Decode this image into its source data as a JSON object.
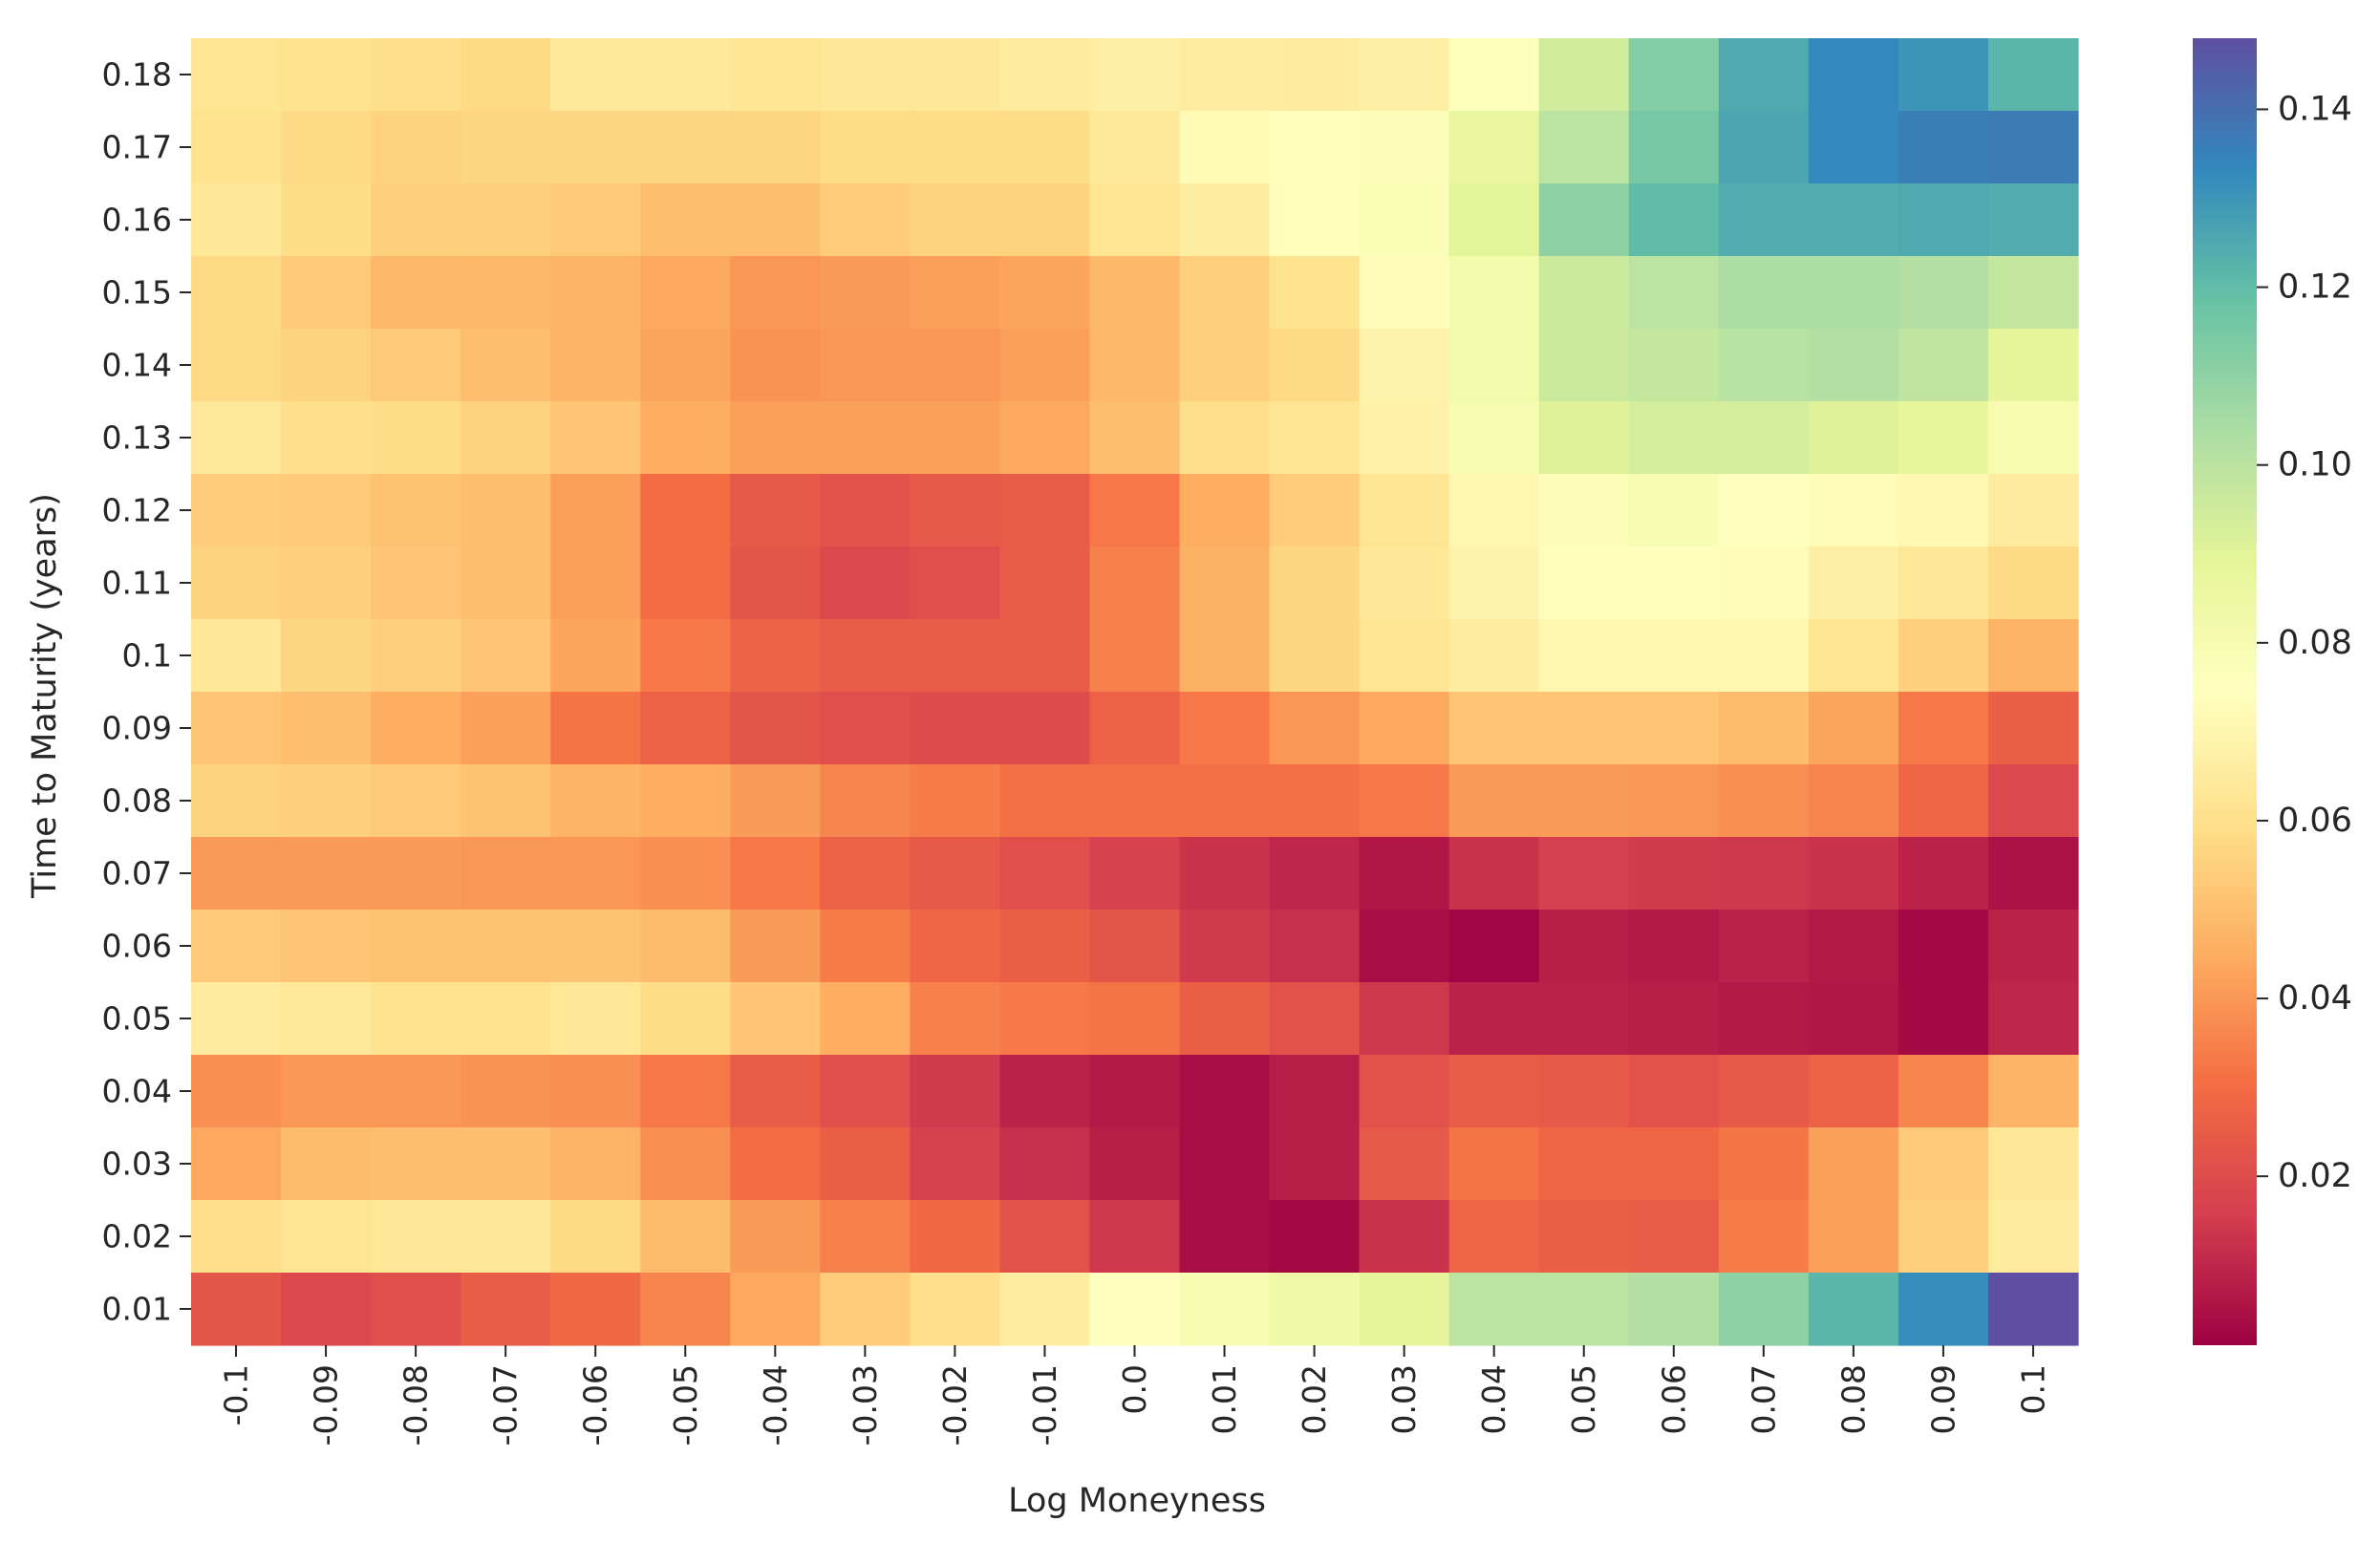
{
  "chart_data": {
    "type": "heatmap",
    "title": "",
    "xlabel": "Log Moneyness",
    "ylabel": "Time to Maturity (years)",
    "x_categories": [
      "-0.1",
      "-0.09",
      "-0.08",
      "-0.07",
      "-0.06",
      "-0.05",
      "-0.04",
      "-0.03",
      "-0.02",
      "-0.01",
      "0.0",
      "0.01",
      "0.02",
      "0.03",
      "0.04",
      "0.05",
      "0.06",
      "0.07",
      "0.08",
      "0.09",
      "0.1"
    ],
    "y_categories": [
      "0.18",
      "0.17",
      "0.16",
      "0.15",
      "0.14",
      "0.13",
      "0.12",
      "0.11",
      "0.1",
      "0.09",
      "0.08",
      "0.07",
      "0.06",
      "0.05",
      "0.04",
      "0.03",
      "0.02",
      "0.01"
    ],
    "values": [
      [
        0.062,
        0.061,
        0.06,
        0.058,
        0.064,
        0.064,
        0.062,
        0.063,
        0.063,
        0.065,
        0.067,
        0.066,
        0.065,
        0.067,
        0.076,
        0.095,
        0.112,
        0.125,
        0.133,
        0.13,
        0.122
      ],
      [
        0.061,
        0.058,
        0.056,
        0.057,
        0.057,
        0.057,
        0.057,
        0.059,
        0.059,
        0.059,
        0.064,
        0.072,
        0.074,
        0.077,
        0.087,
        0.1,
        0.115,
        0.126,
        0.133,
        0.136,
        0.137
      ],
      [
        0.063,
        0.059,
        0.055,
        0.055,
        0.053,
        0.05,
        0.05,
        0.054,
        0.056,
        0.056,
        0.062,
        0.066,
        0.074,
        0.078,
        0.09,
        0.11,
        0.12,
        0.124,
        0.124,
        0.125,
        0.124
      ],
      [
        0.058,
        0.053,
        0.048,
        0.048,
        0.047,
        0.044,
        0.04,
        0.041,
        0.042,
        0.043,
        0.048,
        0.055,
        0.061,
        0.073,
        0.082,
        0.096,
        0.1,
        0.104,
        0.104,
        0.102,
        0.098
      ],
      [
        0.058,
        0.056,
        0.053,
        0.05,
        0.047,
        0.043,
        0.039,
        0.04,
        0.04,
        0.042,
        0.048,
        0.055,
        0.058,
        0.069,
        0.082,
        0.096,
        0.098,
        0.101,
        0.102,
        0.099,
        0.089
      ],
      [
        0.064,
        0.06,
        0.059,
        0.056,
        0.052,
        0.045,
        0.042,
        0.042,
        0.042,
        0.044,
        0.05,
        0.06,
        0.062,
        0.068,
        0.079,
        0.091,
        0.094,
        0.094,
        0.091,
        0.088,
        0.08
      ],
      [
        0.054,
        0.053,
        0.051,
        0.05,
        0.042,
        0.03,
        0.024,
        0.022,
        0.024,
        0.025,
        0.033,
        0.045,
        0.054,
        0.062,
        0.07,
        0.077,
        0.079,
        0.075,
        0.073,
        0.071,
        0.065
      ],
      [
        0.056,
        0.055,
        0.052,
        0.05,
        0.042,
        0.03,
        0.023,
        0.019,
        0.021,
        0.025,
        0.035,
        0.046,
        0.057,
        0.063,
        0.069,
        0.074,
        0.074,
        0.073,
        0.067,
        0.063,
        0.058
      ],
      [
        0.063,
        0.057,
        0.055,
        0.052,
        0.043,
        0.033,
        0.027,
        0.025,
        0.025,
        0.025,
        0.035,
        0.046,
        0.057,
        0.062,
        0.066,
        0.07,
        0.07,
        0.07,
        0.062,
        0.055,
        0.047
      ],
      [
        0.052,
        0.05,
        0.045,
        0.042,
        0.032,
        0.027,
        0.023,
        0.021,
        0.02,
        0.02,
        0.027,
        0.033,
        0.04,
        0.044,
        0.052,
        0.052,
        0.052,
        0.049,
        0.043,
        0.033,
        0.026
      ],
      [
        0.056,
        0.055,
        0.053,
        0.051,
        0.047,
        0.045,
        0.041,
        0.036,
        0.034,
        0.031,
        0.031,
        0.031,
        0.031,
        0.033,
        0.041,
        0.041,
        0.04,
        0.038,
        0.036,
        0.028,
        0.019
      ],
      [
        0.041,
        0.041,
        0.041,
        0.04,
        0.04,
        0.038,
        0.033,
        0.027,
        0.024,
        0.021,
        0.017,
        0.013,
        0.01,
        0.006,
        0.013,
        0.016,
        0.015,
        0.014,
        0.013,
        0.009,
        0.005
      ],
      [
        0.053,
        0.052,
        0.051,
        0.051,
        0.051,
        0.049,
        0.041,
        0.034,
        0.028,
        0.026,
        0.023,
        0.015,
        0.012,
        0.004,
        0.002,
        0.008,
        0.007,
        0.009,
        0.007,
        0.003,
        0.009
      ],
      [
        0.065,
        0.064,
        0.061,
        0.061,
        0.063,
        0.059,
        0.052,
        0.045,
        0.035,
        0.033,
        0.032,
        0.026,
        0.022,
        0.014,
        0.009,
        0.009,
        0.008,
        0.007,
        0.006,
        0.003,
        0.01
      ],
      [
        0.038,
        0.04,
        0.04,
        0.039,
        0.038,
        0.033,
        0.025,
        0.021,
        0.015,
        0.009,
        0.007,
        0.004,
        0.008,
        0.022,
        0.025,
        0.024,
        0.022,
        0.024,
        0.027,
        0.036,
        0.047
      ],
      [
        0.044,
        0.049,
        0.05,
        0.05,
        0.047,
        0.038,
        0.03,
        0.026,
        0.017,
        0.012,
        0.008,
        0.004,
        0.008,
        0.024,
        0.032,
        0.028,
        0.028,
        0.032,
        0.042,
        0.053,
        0.063
      ],
      [
        0.06,
        0.062,
        0.063,
        0.063,
        0.058,
        0.049,
        0.041,
        0.035,
        0.029,
        0.022,
        0.014,
        0.004,
        0.003,
        0.013,
        0.028,
        0.026,
        0.025,
        0.034,
        0.042,
        0.055,
        0.065
      ],
      [
        0.023,
        0.019,
        0.021,
        0.025,
        0.029,
        0.036,
        0.044,
        0.054,
        0.06,
        0.066,
        0.075,
        0.079,
        0.084,
        0.089,
        0.1,
        0.1,
        0.102,
        0.11,
        0.122,
        0.132,
        0.148
      ]
    ],
    "colormap": "Spectral",
    "vmin": 0.001,
    "vmax": 0.148,
    "colorbar_ticks": [
      "0.02",
      "0.04",
      "0.06",
      "0.08",
      "0.10",
      "0.12",
      "0.14"
    ],
    "grid": false,
    "legend": "colorbar-right"
  }
}
